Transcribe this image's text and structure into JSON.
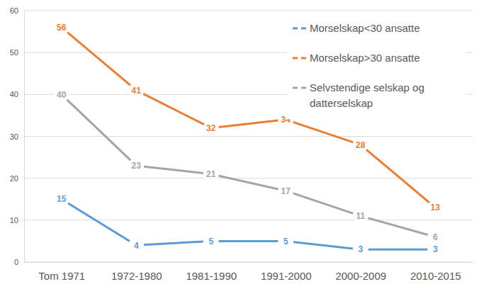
{
  "chart_data": {
    "type": "line",
    "categories": [
      "Tom 1971",
      "1972-1980",
      "1981-1990",
      "1991-2000",
      "2000-2009",
      "2010-2015"
    ],
    "series": [
      {
        "name": "Morselskap<30 ansatte",
        "color": "#5b9bd5",
        "values": [
          15,
          4,
          5,
          5,
          3,
          3
        ]
      },
      {
        "name": "Morselskap>30 ansatte",
        "color": "#ed7d31",
        "values": [
          56,
          41,
          32,
          34,
          28,
          13
        ]
      },
      {
        "name": "Selvstendige selskap og datterselskap",
        "color": "#a5a5a5",
        "values": [
          40,
          23,
          21,
          17,
          11,
          6
        ]
      }
    ],
    "ylim": [
      0,
      60
    ],
    "yticks": [
      0,
      10,
      20,
      30,
      40,
      50,
      60
    ],
    "grid": true,
    "legend": "top-right",
    "data_labels": true
  }
}
